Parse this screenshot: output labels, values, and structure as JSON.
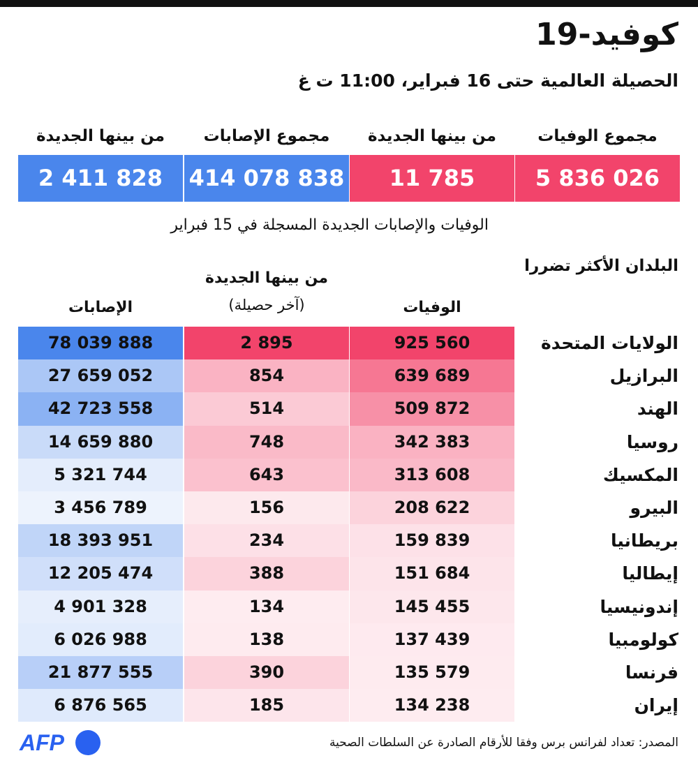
{
  "title": "كوفيد-19",
  "subtitle": "الحصيلة العالمية حتى 16 فبراير، 11:00 ت غ",
  "summary": {
    "total_deaths_label": "مجموع الوفيات",
    "total_deaths": "5 836 026",
    "new_deaths_label": "من بينها الجديدة",
    "new_deaths": "11 785",
    "total_cases_label": "مجموع الإصابات",
    "total_cases": "414 078 838",
    "new_cases_label": "من بينها الجديدة",
    "new_cases": "2 411 828"
  },
  "note": "الوفيات والإصابات الجديدة المسجلة في 15 فبراير",
  "table": {
    "title": "البلدان الأكثر تضررا",
    "col_deaths": "الوفيات",
    "col_new_line1": "من بينها الجديدة",
    "col_new_line2": "(آخر حصيلة)",
    "col_cases": "الإصابات"
  },
  "colors": {
    "deaths": "#f2446b",
    "cases": "#4a86ec",
    "background": "#ffffff"
  },
  "chart_data": {
    "type": "table",
    "columns": [
      "الوفيات",
      "من بينها الجديدة (آخر حصيلة)",
      "الإصابات"
    ],
    "rows": [
      {
        "country": "الولايات المتحدة",
        "deaths": "925 560",
        "new": "2 895",
        "cases": "78 039 888",
        "deaths_v": 925560,
        "new_v": 2895,
        "cases_v": 78039888
      },
      {
        "country": "البرازيل",
        "deaths": "639 689",
        "new": "854",
        "cases": "27 659 052",
        "deaths_v": 639689,
        "new_v": 854,
        "cases_v": 27659052
      },
      {
        "country": "الهند",
        "deaths": "509 872",
        "new": "514",
        "cases": "42 723 558",
        "deaths_v": 509872,
        "new_v": 514,
        "cases_v": 42723558
      },
      {
        "country": "روسيا",
        "deaths": "342 383",
        "new": "748",
        "cases": "14 659 880",
        "deaths_v": 342383,
        "new_v": 748,
        "cases_v": 14659880
      },
      {
        "country": "المكسيك",
        "deaths": "313 608",
        "new": "643",
        "cases": "5 321 744",
        "deaths_v": 313608,
        "new_v": 643,
        "cases_v": 5321744
      },
      {
        "country": "البيرو",
        "deaths": "208 622",
        "new": "156",
        "cases": "3 456 789",
        "deaths_v": 208622,
        "new_v": 156,
        "cases_v": 3456789
      },
      {
        "country": "بريطانيا",
        "deaths": "159 839",
        "new": "234",
        "cases": "18 393 951",
        "deaths_v": 159839,
        "new_v": 234,
        "cases_v": 18393951
      },
      {
        "country": "إيطاليا",
        "deaths": "151 684",
        "new": "388",
        "cases": "12 205 474",
        "deaths_v": 151684,
        "new_v": 388,
        "cases_v": 12205474
      },
      {
        "country": "إندونيسيا",
        "deaths": "145 455",
        "new": "134",
        "cases": "4 901 328",
        "deaths_v": 145455,
        "new_v": 134,
        "cases_v": 4901328
      },
      {
        "country": "كولومبيا",
        "deaths": "137 439",
        "new": "138",
        "cases": "6 026 988",
        "deaths_v": 137439,
        "new_v": 138,
        "cases_v": 6026988
      },
      {
        "country": "فرنسا",
        "deaths": "135 579",
        "new": "390",
        "cases": "21 877 555",
        "deaths_v": 135579,
        "new_v": 390,
        "cases_v": 21877555
      },
      {
        "country": "إيران",
        "deaths": "134 238",
        "new": "185",
        "cases": "6 876 565",
        "deaths_v": 134238,
        "new_v": 185,
        "cases_v": 6876565
      }
    ]
  },
  "source": "المصدر: تعداد لفرانس برس وفقا للأرقام الصادرة عن السلطات الصحية",
  "logo": "AFP"
}
